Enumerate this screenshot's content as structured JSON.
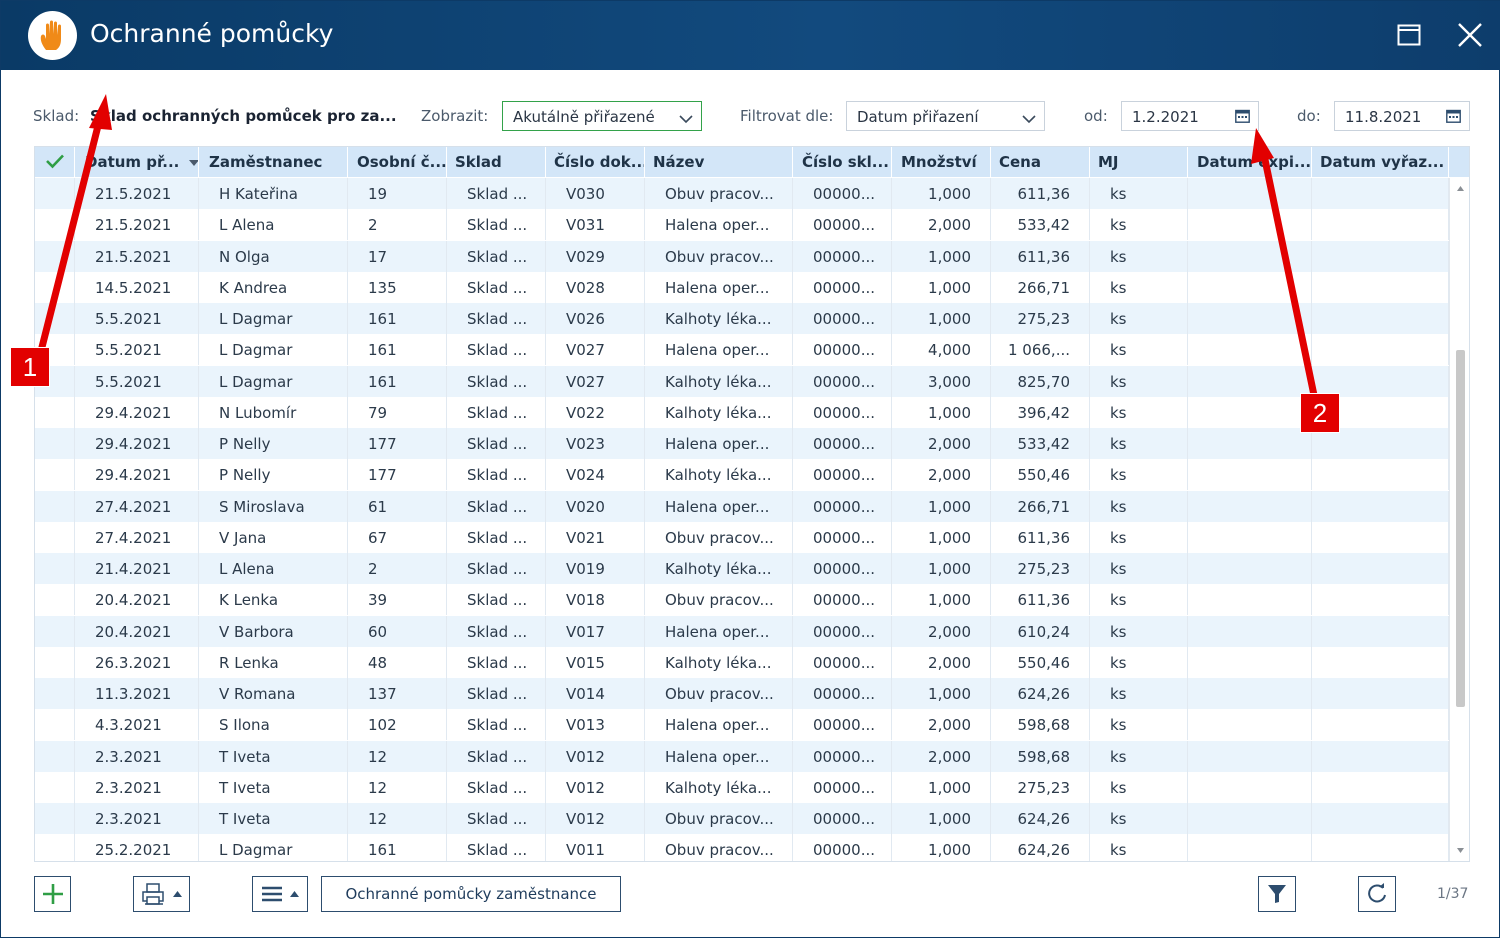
{
  "window": {
    "title": "Ochranné pomůcky",
    "icon": "hand-icon"
  },
  "toolbar": {
    "sklad_label": "Sklad:",
    "sklad_value": "Sklad ochranných pomůcek pro za...",
    "zobrazit_label": "Zobrazit:",
    "zobrazit_value": "Akutálně přiřazené",
    "filtrovat_label": "Filtrovat dle:",
    "filtrovat_value": "Datum přiřazení",
    "od_label": "od:",
    "od_value": "1.2.2021",
    "do_label": "do:",
    "do_value": "11.8.2021"
  },
  "columns": [
    "",
    "Datum př...",
    "Zaměstnanec",
    "Osobní č...",
    "Sklad",
    "Číslo dok...",
    "Název",
    "Číslo skl...",
    "Množství",
    "Cena",
    "MJ",
    "Datum expi...",
    "Datum vyřaz..."
  ],
  "rows": [
    [
      "21.5.2021",
      "H Kateřina",
      "19",
      "Sklad ...",
      "V030",
      "Obuv pracov...",
      "00000...",
      "1,000",
      "611,36",
      "ks"
    ],
    [
      "21.5.2021",
      "L Alena",
      "2",
      "Sklad ...",
      "V031",
      "Halena oper...",
      "00000...",
      "2,000",
      "533,42",
      "ks"
    ],
    [
      "21.5.2021",
      "N Olga",
      "17",
      "Sklad ...",
      "V029",
      "Obuv pracov...",
      "00000...",
      "1,000",
      "611,36",
      "ks"
    ],
    [
      "14.5.2021",
      "K Andrea",
      "135",
      "Sklad ...",
      "V028",
      "Halena oper...",
      "00000...",
      "1,000",
      "266,71",
      "ks"
    ],
    [
      "5.5.2021",
      "L Dagmar",
      "161",
      "Sklad ...",
      "V026",
      "Kalhoty léka...",
      "00000...",
      "1,000",
      "275,23",
      "ks"
    ],
    [
      "5.5.2021",
      "L Dagmar",
      "161",
      "Sklad ...",
      "V027",
      "Halena oper...",
      "00000...",
      "4,000",
      "1 066,...",
      "ks"
    ],
    [
      "5.5.2021",
      "L Dagmar",
      "161",
      "Sklad ...",
      "V027",
      "Kalhoty léka...",
      "00000...",
      "3,000",
      "825,70",
      "ks"
    ],
    [
      "29.4.2021",
      "N Lubomír",
      "79",
      "Sklad ...",
      "V022",
      "Kalhoty léka...",
      "00000...",
      "1,000",
      "396,42",
      "ks"
    ],
    [
      "29.4.2021",
      "P Nelly",
      "177",
      "Sklad ...",
      "V023",
      "Halena oper...",
      "00000...",
      "2,000",
      "533,42",
      "ks"
    ],
    [
      "29.4.2021",
      "P Nelly",
      "177",
      "Sklad ...",
      "V024",
      "Kalhoty léka...",
      "00000...",
      "2,000",
      "550,46",
      "ks"
    ],
    [
      "27.4.2021",
      "S Miroslava",
      "61",
      "Sklad ...",
      "V020",
      "Halena oper...",
      "00000...",
      "1,000",
      "266,71",
      "ks"
    ],
    [
      "27.4.2021",
      "V Jana",
      "67",
      "Sklad ...",
      "V021",
      "Obuv pracov...",
      "00000...",
      "1,000",
      "611,36",
      "ks"
    ],
    [
      "21.4.2021",
      "L Alena",
      "2",
      "Sklad ...",
      "V019",
      "Kalhoty léka...",
      "00000...",
      "1,000",
      "275,23",
      "ks"
    ],
    [
      "20.4.2021",
      "K Lenka",
      "39",
      "Sklad ...",
      "V018",
      "Obuv pracov...",
      "00000...",
      "1,000",
      "611,36",
      "ks"
    ],
    [
      "20.4.2021",
      "V Barbora",
      "60",
      "Sklad ...",
      "V017",
      "Halena oper...",
      "00000...",
      "2,000",
      "610,24",
      "ks"
    ],
    [
      "26.3.2021",
      "R Lenka",
      "48",
      "Sklad ...",
      "V015",
      "Kalhoty léka...",
      "00000...",
      "2,000",
      "550,46",
      "ks"
    ],
    [
      "11.3.2021",
      "V Romana",
      "137",
      "Sklad ...",
      "V014",
      "Obuv pracov...",
      "00000...",
      "1,000",
      "624,26",
      "ks"
    ],
    [
      "4.3.2021",
      "S Ilona",
      "102",
      "Sklad ...",
      "V013",
      "Halena oper...",
      "00000...",
      "2,000",
      "598,68",
      "ks"
    ],
    [
      "2.3.2021",
      "T Iveta",
      "12",
      "Sklad ...",
      "V012",
      "Halena oper...",
      "00000...",
      "2,000",
      "598,68",
      "ks"
    ],
    [
      "2.3.2021",
      "T Iveta",
      "12",
      "Sklad ...",
      "V012",
      "Kalhoty léka...",
      "00000...",
      "1,000",
      "275,23",
      "ks"
    ],
    [
      "2.3.2021",
      "T Iveta",
      "12",
      "Sklad ...",
      "V012",
      "Obuv pracov...",
      "00000...",
      "1,000",
      "624,26",
      "ks"
    ],
    [
      "25.2.2021",
      "L Dagmar",
      "161",
      "Sklad ...",
      "V011",
      "Obuv pracov...",
      "00000...",
      "1,000",
      "624,26",
      "ks"
    ]
  ],
  "footer": {
    "employee_items_label": "Ochranné pomůcky zaměstnance",
    "page_count": "1/37"
  },
  "annotations": {
    "marker1": "1",
    "marker2": "2",
    "color": "#e20000"
  }
}
